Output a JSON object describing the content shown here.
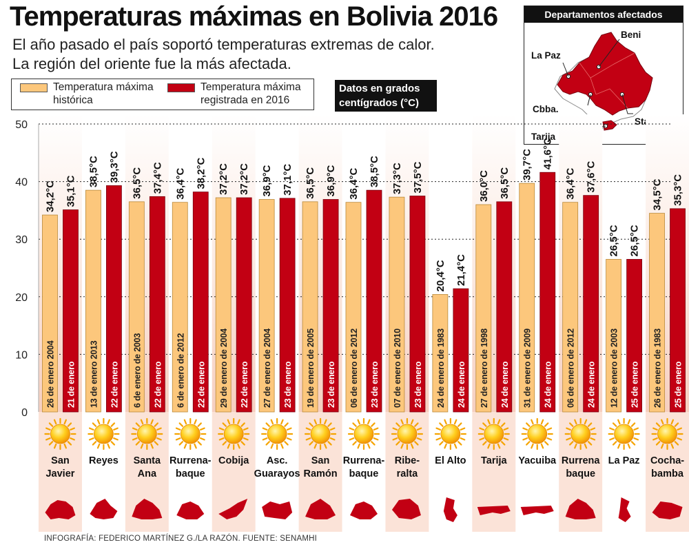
{
  "header": {
    "title": "Temperaturas máximas en Bolivia 2016",
    "subtitle_line1": "El año pasado el país soportó temperaturas extremas de calor.",
    "subtitle_line2": "La región del oriente fue la más afectada."
  },
  "legend": {
    "historic_label": "Temperatura máxima histórica",
    "recorded_label": "Temperatura máxima registrada en 2016"
  },
  "units_label": "Datos en grados centígrados (°C)",
  "map": {
    "title": "Departamentos afectados",
    "labels": [
      "Beni",
      "La Paz",
      "Cbba.",
      "Tarija",
      "Sta. Cruz"
    ]
  },
  "colors": {
    "historic": "#fcc77c",
    "recorded": "#c20013",
    "panel": "#fbe3d8",
    "grid": "#222222"
  },
  "footer": "INFOGRAFÍA: FEDERICO MARTÍNEZ G./LA RAZÓN. FUENTE: SENAMHI",
  "chart_data": {
    "type": "bar",
    "title": "Temperaturas máximas en Bolivia 2016",
    "xlabel": "",
    "ylabel": "",
    "ylim": [
      0,
      50
    ],
    "yticks": [
      0,
      10,
      20,
      30,
      40,
      50
    ],
    "grid": true,
    "categories": [
      "San Javier",
      "Reyes",
      "Santa Ana",
      "Rurrenabaque",
      "Cobija",
      "Asc. Guarayos",
      "San Ramón",
      "Rurrenabaque",
      "Riberalta",
      "El Alto",
      "Tarija",
      "Yacuiba",
      "Rurrena baque",
      "La Paz",
      "Cochabamba"
    ],
    "category_labels": [
      [
        "San",
        "Javier"
      ],
      [
        "Reyes"
      ],
      [
        "Santa",
        "Ana"
      ],
      [
        "Rurrena-",
        "baque"
      ],
      [
        "Cobija"
      ],
      [
        "Asc.",
        "Guarayos"
      ],
      [
        "San",
        "Ramón"
      ],
      [
        "Rurrena-",
        "baque"
      ],
      [
        "Ribe-",
        "ralta"
      ],
      [
        "El Alto"
      ],
      [
        "Tarija"
      ],
      [
        "Yacuiba"
      ],
      [
        "Rurrena",
        "baque"
      ],
      [
        "La Paz"
      ],
      [
        "Cocha-",
        "bamba"
      ]
    ],
    "series": [
      {
        "name": "Temperatura máxima histórica",
        "values": [
          34.2,
          38.5,
          36.5,
          36.4,
          37.2,
          36.9,
          36.5,
          36.4,
          37.3,
          20.4,
          36.0,
          39.7,
          36.4,
          26.5,
          34.5
        ],
        "value_labels": [
          "34,2°C",
          "38,5°C",
          "36,5°C",
          "36,4°C",
          "37,2°C",
          "36,9°C",
          "36,5°C",
          "36,4°C",
          "37,3°C",
          "20,4°C",
          "36,0°C",
          "39,7°C",
          "36,4°C",
          "26,5°C",
          "34,5°C"
        ],
        "dates": [
          "26 de enero 2004",
          "13 de enero 2013",
          "6 de enero de 2003",
          "6 de enero de 2012",
          "29 de enero de 2004",
          "27 de enero de 2004",
          "19 de enero de 2005",
          "06 de enero de 2012",
          "07 de enero de 2010",
          "24 de enero de 1983",
          "27 de enero de 1998",
          "31 de enero de 2009",
          "06 de enero de 2012",
          "12 de enero de 2003",
          "26 de enero de 1983"
        ]
      },
      {
        "name": "Temperatura máxima registrada en 2016",
        "values": [
          35.1,
          39.3,
          37.4,
          38.2,
          37.2,
          37.1,
          36.9,
          38.5,
          37.5,
          21.4,
          36.5,
          41.6,
          37.6,
          26.5,
          35.3
        ],
        "value_labels": [
          "35,1°C",
          "39,3°C",
          "37,4°C",
          "38,2°C",
          "37,2°C",
          "37,1°C",
          "36,9°C",
          "38,5°C",
          "37,5°C",
          "21,4°C",
          "36,5°C",
          "41,6°C",
          "37,6°C",
          "26,5°C",
          "35,3°C"
        ],
        "dates": [
          "21 de enero",
          "22 de enero",
          "22 de enero",
          "22 de enero",
          "22 de enero",
          "23 de enero",
          "23 de enero",
          "23 de enero",
          "23 de enero",
          "24 de enero",
          "24 de enero",
          "24 de enero",
          "24 de enero",
          "25 de enero",
          "25 de enero"
        ]
      }
    ]
  }
}
